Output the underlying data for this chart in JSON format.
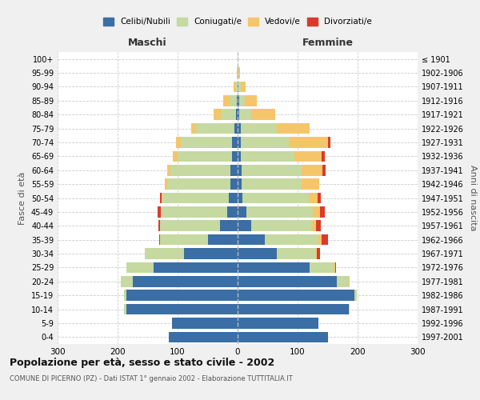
{
  "age_groups": [
    "0-4",
    "5-9",
    "10-14",
    "15-19",
    "20-24",
    "25-29",
    "30-34",
    "35-39",
    "40-44",
    "45-49",
    "50-54",
    "55-59",
    "60-64",
    "65-69",
    "70-74",
    "75-79",
    "80-84",
    "85-89",
    "90-94",
    "95-99",
    "100+"
  ],
  "birth_years": [
    "1997-2001",
    "1992-1996",
    "1987-1991",
    "1982-1986",
    "1977-1981",
    "1972-1976",
    "1967-1971",
    "1962-1966",
    "1957-1961",
    "1952-1956",
    "1947-1951",
    "1942-1946",
    "1937-1941",
    "1932-1936",
    "1927-1931",
    "1922-1926",
    "1917-1921",
    "1912-1916",
    "1907-1911",
    "1902-1906",
    "≤ 1901"
  ],
  "maschi": {
    "celibi": [
      115,
      110,
      185,
      185,
      175,
      140,
      90,
      50,
      30,
      18,
      15,
      12,
      12,
      10,
      10,
      5,
      3,
      2,
      0,
      0,
      0
    ],
    "coniugati": [
      0,
      0,
      5,
      5,
      20,
      45,
      65,
      80,
      100,
      110,
      110,
      105,
      100,
      90,
      85,
      65,
      25,
      12,
      4,
      1,
      0
    ],
    "vedovi": [
      0,
      0,
      0,
      0,
      0,
      0,
      0,
      0,
      0,
      0,
      2,
      5,
      5,
      8,
      8,
      8,
      12,
      10,
      3,
      1,
      0
    ],
    "divorziati": [
      0,
      0,
      0,
      0,
      0,
      1,
      0,
      1,
      2,
      5,
      3,
      0,
      0,
      0,
      0,
      0,
      0,
      0,
      0,
      0,
      0
    ]
  },
  "femmine": {
    "nubili": [
      150,
      135,
      185,
      195,
      165,
      120,
      65,
      45,
      22,
      15,
      8,
      6,
      6,
      5,
      5,
      5,
      2,
      2,
      1,
      0,
      0
    ],
    "coniugate": [
      0,
      0,
      2,
      4,
      20,
      40,
      65,
      90,
      100,
      110,
      110,
      100,
      100,
      90,
      80,
      60,
      20,
      10,
      4,
      1,
      0
    ],
    "vedove": [
      0,
      0,
      0,
      0,
      1,
      2,
      2,
      5,
      8,
      12,
      15,
      30,
      35,
      45,
      65,
      55,
      40,
      20,
      8,
      3,
      0
    ],
    "divorziate": [
      0,
      0,
      0,
      0,
      0,
      2,
      5,
      10,
      8,
      8,
      5,
      0,
      5,
      5,
      5,
      0,
      0,
      0,
      0,
      0,
      0
    ]
  },
  "colors": {
    "celibi": "#3A6EA5",
    "coniugati": "#C5D9A0",
    "vedovi": "#F5C56A",
    "divorziati": "#D93B2A"
  },
  "xlim": 300,
  "title": "Popolazione per età, sesso e stato civile - 2002",
  "subtitle": "COMUNE DI PICERNO (PZ) - Dati ISTAT 1° gennaio 2002 - Elaborazione TUTTITALIA.IT",
  "ylabel_left": "Fasce di età",
  "ylabel_right": "Anni di nascita",
  "xlabel_left": "Maschi",
  "xlabel_right": "Femmine",
  "bg_color": "#f0f0f0",
  "plot_bg": "#ffffff"
}
